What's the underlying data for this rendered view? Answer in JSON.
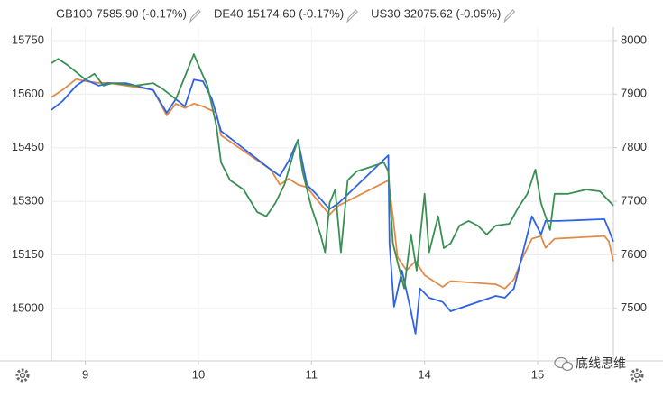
{
  "chart_data": {
    "type": "line",
    "series": [
      {
        "name": "GB100",
        "legend_value": "7585.90 (-0.17%)",
        "color": "#e08b4a",
        "axis": "y2",
        "x": [
          -0.3,
          -0.2,
          -0.08,
          0,
          0.12,
          0.2,
          0.6,
          0.72,
          0.8,
          0.88,
          0.96,
          1.04,
          1.16,
          1.2,
          1.64,
          1.72,
          1.8,
          1.88,
          1.96,
          2.04,
          2.16,
          2.24,
          2.68,
          2.72,
          2.76,
          2.84,
          2.92,
          3.0,
          3.08,
          3.16,
          3.23,
          3.63,
          3.71,
          3.79,
          3.87,
          3.95,
          4.03,
          4.07,
          4.15,
          4.59,
          4.63,
          4.67
        ],
        "values": [
          7894,
          7908,
          7928,
          7924,
          7921,
          7921,
          7908,
          7860,
          7882,
          7874,
          7882,
          7877,
          7865,
          7823,
          7759,
          7731,
          7742,
          7731,
          7726,
          7705,
          7675,
          7692,
          7739,
          7672,
          7596,
          7571,
          7588,
          7562,
          7551,
          7540,
          7551,
          7545,
          7537,
          7554,
          7596,
          7630,
          7635,
          7613,
          7630,
          7635,
          7625,
          7588
        ]
      },
      {
        "name": "DE40",
        "legend_value": "15174.60 (-0.17%)",
        "color": "#2f62e6",
        "axis": "y",
        "x": [
          -0.3,
          -0.2,
          -0.08,
          0,
          0.12,
          0.2,
          0.36,
          0.6,
          0.72,
          0.8,
          0.88,
          0.96,
          1.04,
          1.12,
          1.2,
          1.64,
          1.72,
          1.8,
          1.88,
          1.96,
          2.04,
          2.16,
          2.24,
          2.68,
          2.69,
          2.73,
          2.8,
          2.88,
          2.92,
          2.96,
          3.04,
          3.16,
          3.23,
          3.63,
          3.71,
          3.79,
          3.87,
          3.95,
          4.03,
          4.07,
          4.19,
          4.59,
          4.63,
          4.67
        ],
        "values": [
          15556,
          15581,
          15624,
          15641,
          15624,
          15631,
          15631,
          15611,
          15548,
          15586,
          15566,
          15641,
          15636,
          15586,
          15497,
          15389,
          15371,
          15414,
          15472,
          15346,
          15321,
          15278,
          15295,
          15429,
          15182,
          15005,
          15106,
          14992,
          14929,
          15056,
          15030,
          15018,
          14992,
          15035,
          15030,
          15056,
          15157,
          15258,
          15207,
          15245,
          15245,
          15250,
          15220,
          15187
        ]
      },
      {
        "name": "US30",
        "legend_value": "32075.62 (-0.05%)",
        "color": "#3a8f55",
        "axis": "y",
        "x": [
          -0.3,
          -0.24,
          -0.16,
          -0.08,
          0,
          0.08,
          0.16,
          0.24,
          0.44,
          0.6,
          0.68,
          0.8,
          0.88,
          0.96,
          1.01,
          1.08,
          1.16,
          1.2,
          1.28,
          1.4,
          1.52,
          1.6,
          1.68,
          1.76,
          1.84,
          1.88,
          1.92,
          2.0,
          2.08,
          2.12,
          2.16,
          2.21,
          2.26,
          2.32,
          2.4,
          2.52,
          2.64,
          2.68,
          2.72,
          2.76,
          2.82,
          2.88,
          2.93,
          3.0,
          3.04,
          3.12,
          3.17,
          3.23,
          3.31,
          3.39,
          3.47,
          3.55,
          3.63,
          3.75,
          3.83,
          3.91,
          3.98,
          4.03,
          4.11,
          4.15,
          4.27,
          4.43,
          4.55,
          4.67
        ],
        "values": [
          15687,
          15699,
          15682,
          15662,
          15641,
          15657,
          15624,
          15631,
          15624,
          15631,
          15616,
          15586,
          15649,
          15712,
          15674,
          15624,
          15510,
          15409,
          15359,
          15333,
          15270,
          15258,
          15295,
          15346,
          15434,
          15472,
          15384,
          15283,
          15207,
          15157,
          15295,
          15333,
          15157,
          15359,
          15384,
          15396,
          15409,
          15384,
          15182,
          15131,
          15056,
          15207,
          15106,
          15321,
          15157,
          15258,
          15169,
          15182,
          15232,
          15245,
          15232,
          15207,
          15232,
          15237,
          15283,
          15321,
          15389,
          15295,
          15220,
          15321,
          15321,
          15333,
          15328,
          15288
        ]
      }
    ],
    "xlim": [
      -0.3,
      4.67
    ],
    "xticks": [
      {
        "value": 0,
        "label": "9"
      },
      {
        "value": 1,
        "label": "10"
      },
      {
        "value": 2,
        "label": "11"
      },
      {
        "value": 3,
        "label": "14"
      },
      {
        "value": 4,
        "label": "15"
      }
    ],
    "ylim": [
      14853,
      15788
    ],
    "yticks": [
      15000,
      15150,
      15300,
      15450,
      15600,
      15750
    ],
    "y2lim": [
      7402,
      8025
    ],
    "y2ticks": [
      7500,
      7600,
      7700,
      7800,
      7900,
      8000
    ],
    "grid": true,
    "watermark": "底线思维"
  }
}
